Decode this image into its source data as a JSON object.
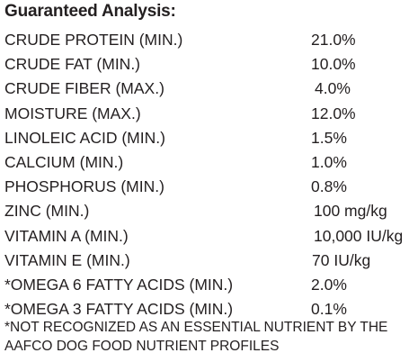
{
  "title": "Guaranteed Analysis:",
  "rows": [
    {
      "name": "CRUDE PROTEIN (MIN.)",
      "value": "21.0%"
    },
    {
      "name": "CRUDE FAT (MIN.)",
      "value": "10.0%"
    },
    {
      "name": "CRUDE FIBER (MAX.)",
      "value": "4.0%"
    },
    {
      "name": "MOISTURE (MAX.)",
      "value": "12.0%"
    },
    {
      "name": "LINOLEIC ACID (MIN.)",
      "value": "1.5%"
    },
    {
      "name": "CALCIUM (MIN.)",
      "value": "1.0%"
    },
    {
      "name": "PHOSPHORUS (MIN.)",
      "value": "0.8%"
    },
    {
      "name": "ZINC (MIN.)",
      "value": "100 mg/kg"
    },
    {
      "name": "VITAMIN A (MIN.)",
      "value": "10,000 IU/kg"
    },
    {
      "name": "VITAMIN E (MIN.)",
      "value": "70 IU/kg"
    },
    {
      "name": "*OMEGA 6 FATTY ACIDS (MIN.)",
      "value": "2.0%"
    },
    {
      "name": "*OMEGA 3 FATTY ACIDS (MIN.)",
      "value": "0.1%"
    }
  ],
  "footnote": {
    "line1": "*NOT RECOGNIZED AS AN ESSENTIAL NUTRIENT BY THE",
    "line2": "AAFCO DOG FOOD NUTRIENT PROFILES"
  }
}
